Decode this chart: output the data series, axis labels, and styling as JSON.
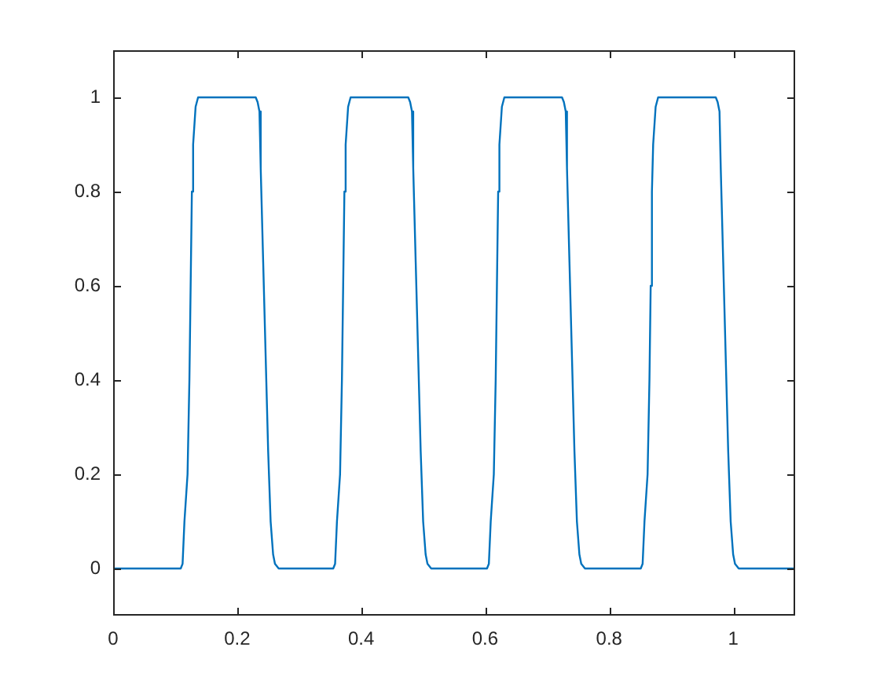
{
  "chart_data": {
    "type": "line",
    "x": [
      0,
      0.109,
      0.112,
      0.115,
      0.12,
      0.123,
      0.125,
      0.127,
      0.129,
      0.133,
      0.137,
      0.23,
      0.233,
      0.236,
      0.238,
      0.242,
      0.246,
      0.25,
      0.254,
      0.258,
      0.261,
      0.267,
      0.355,
      0.358,
      0.361,
      0.366,
      0.369,
      0.371,
      0.373,
      0.375,
      0.379,
      0.383,
      0.476,
      0.479,
      0.482,
      0.484,
      0.488,
      0.492,
      0.496,
      0.5,
      0.504,
      0.507,
      0.513,
      0.603,
      0.606,
      0.609,
      0.614,
      0.617,
      0.619,
      0.621,
      0.623,
      0.627,
      0.631,
      0.724,
      0.727,
      0.73,
      0.732,
      0.736,
      0.74,
      0.744,
      0.748,
      0.752,
      0.755,
      0.761,
      0.851,
      0.854,
      0.857,
      0.862,
      0.865,
      0.867,
      0.869,
      0.871,
      0.875,
      0.879,
      0.972,
      0.975,
      0.978,
      0.98,
      0.984,
      0.988,
      0.992,
      0.996,
      1.0,
      1.003,
      1.009,
      1.1
    ],
    "series": [
      {
        "color": "#0072bd",
        "values": [
          0,
          0,
          0.01,
          0.1,
          0.2,
          0.4,
          0.6,
          0.8,
          0.9,
          0.98,
          1,
          1,
          0.99,
          0.97,
          0.85,
          0.65,
          0.45,
          0.25,
          0.1,
          0.03,
          0.01,
          0,
          0,
          0.01,
          0.1,
          0.2,
          0.4,
          0.6,
          0.8,
          0.9,
          0.98,
          1,
          1,
          0.99,
          0.97,
          0.85,
          0.65,
          0.45,
          0.25,
          0.1,
          0.03,
          0.01,
          0,
          0,
          0.01,
          0.1,
          0.2,
          0.4,
          0.6,
          0.8,
          0.9,
          0.98,
          1,
          1,
          0.99,
          0.97,
          0.85,
          0.65,
          0.45,
          0.25,
          0.1,
          0.03,
          0.01,
          0,
          0,
          0.01,
          0.1,
          0.2,
          0.4,
          0.6,
          0.8,
          0.9,
          0.98,
          1,
          1,
          0.99,
          0.97,
          0.85,
          0.65,
          0.45,
          0.25,
          0.1,
          0.03,
          0.01,
          0,
          0
        ]
      }
    ],
    "xlim": [
      0,
      1.1
    ],
    "xticks": [
      0,
      0.2,
      0.4,
      0.6,
      0.8,
      1
    ],
    "ylim": [
      -0.1,
      1.1
    ],
    "yticks": [
      0,
      0.2,
      0.4,
      0.6,
      0.8,
      1
    ],
    "legend": false,
    "marker": "none",
    "line_style": "solid"
  }
}
